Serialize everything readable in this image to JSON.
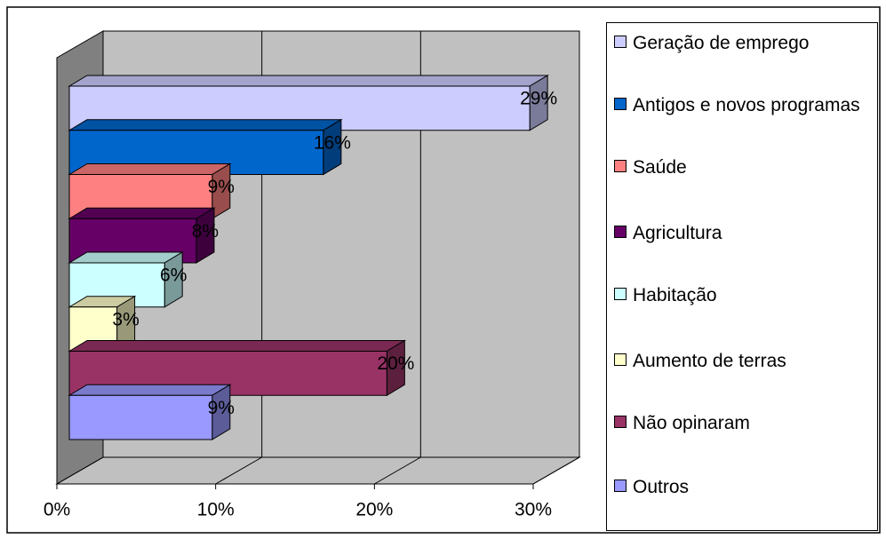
{
  "chart_data": {
    "type": "bar3d_horizontal",
    "series": [
      {
        "name": "Geração de emprego",
        "color": "#CCCCFF",
        "values": [
          29
        ],
        "value_labels": [
          "29%"
        ]
      },
      {
        "name": "Antigos e novos programas",
        "color": "#0066CC",
        "values": [
          16
        ],
        "value_labels": [
          "16%"
        ]
      },
      {
        "name": "Saúde",
        "color": "#FF8080",
        "values": [
          9
        ],
        "value_labels": [
          "9%"
        ]
      },
      {
        "name": "Agricultura",
        "color": "#660066",
        "values": [
          8
        ],
        "value_labels": [
          "8%"
        ]
      },
      {
        "name": "Habitação",
        "color": "#CCFFFF",
        "values": [
          6
        ],
        "value_labels": [
          "6%"
        ]
      },
      {
        "name": "Aumento de terras",
        "color": "#FFFFCC",
        "values": [
          3
        ],
        "value_labels": [
          "3%"
        ]
      },
      {
        "name": "Não opinaram",
        "color": "#993366",
        "values": [
          20
        ],
        "value_labels": [
          "20%"
        ]
      },
      {
        "name": "Outros",
        "color": "#9999FF",
        "values": [
          9
        ],
        "value_labels": [
          "9%"
        ]
      }
    ],
    "xlim": [
      0,
      30
    ],
    "xticks": [
      {
        "value": 0,
        "label": "0%"
      },
      {
        "value": 10,
        "label": "10%"
      },
      {
        "value": 20,
        "label": "20%"
      },
      {
        "value": 30,
        "label": "30%"
      }
    ],
    "grid": true,
    "legend": "right"
  }
}
